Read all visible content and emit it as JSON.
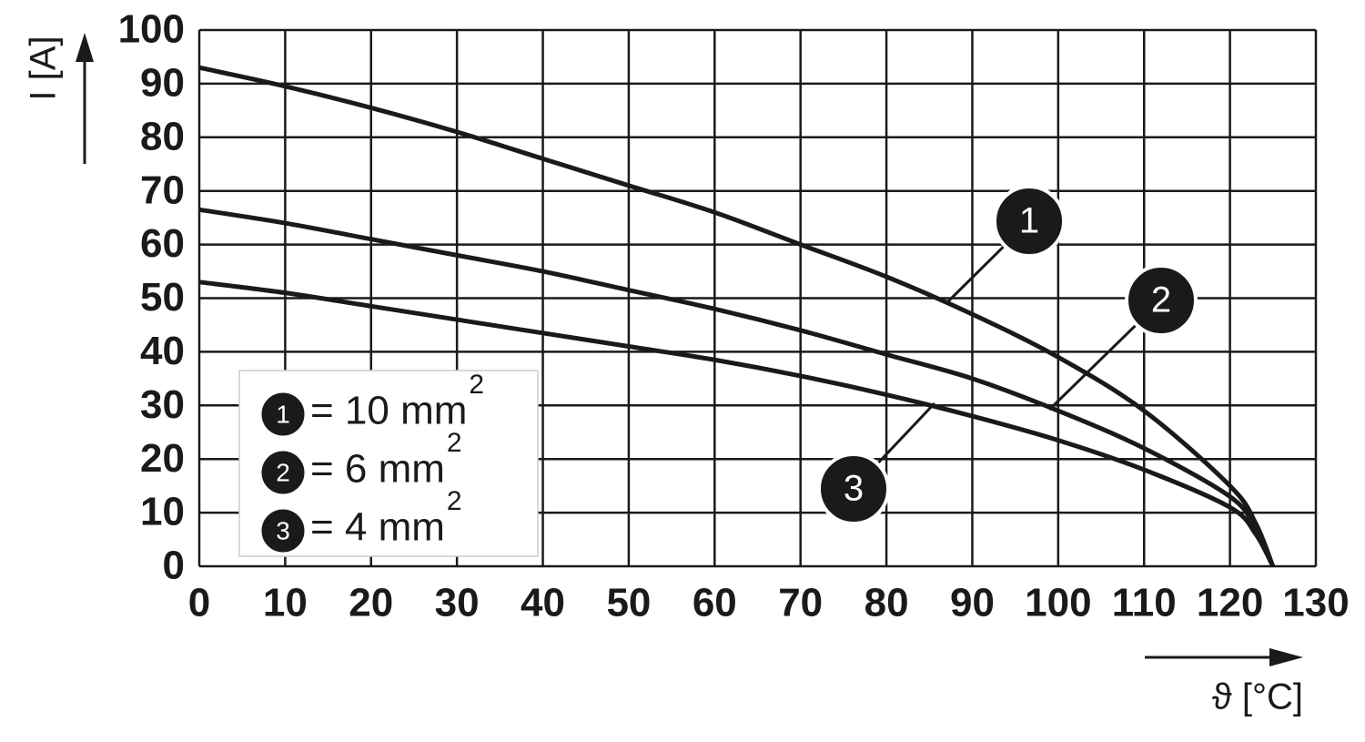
{
  "chart_data": {
    "type": "line",
    "y_label": "I [A]",
    "x_label": "ϑ [°C]",
    "x": [
      0,
      10,
      20,
      30,
      40,
      50,
      60,
      70,
      80,
      90,
      100,
      110,
      120,
      123,
      125
    ],
    "series": [
      {
        "marker": "1",
        "name": "= 10 mm",
        "name_sup": "2",
        "color": "#1a1a1a",
        "values": [
          93,
          89.5,
          85.5,
          81,
          76,
          71,
          66,
          60,
          54,
          47,
          39,
          29,
          15,
          8,
          0
        ]
      },
      {
        "marker": "2",
        "name": "= 6 mm",
        "name_sup": "2",
        "color": "#1a1a1a",
        "values": [
          66.5,
          64,
          61,
          58,
          55,
          51.5,
          48,
          44,
          39.5,
          35,
          29,
          22,
          13,
          7,
          0
        ]
      },
      {
        "marker": "3",
        "name": "= 4 mm",
        "name_sup": "2",
        "color": "#1a1a1a",
        "values": [
          53,
          51,
          48.5,
          46,
          43.5,
          41,
          38.5,
          35.5,
          32,
          28,
          23.5,
          18,
          11,
          6,
          0
        ]
      }
    ],
    "xlim": [
      0,
      130
    ],
    "xticks": [
      0,
      10,
      20,
      30,
      40,
      50,
      60,
      70,
      80,
      90,
      100,
      110,
      120,
      130
    ],
    "ylim": [
      0,
      100
    ],
    "yticks": [
      0,
      10,
      20,
      30,
      40,
      50,
      60,
      70,
      80,
      90,
      100
    ],
    "grid": true
  }
}
